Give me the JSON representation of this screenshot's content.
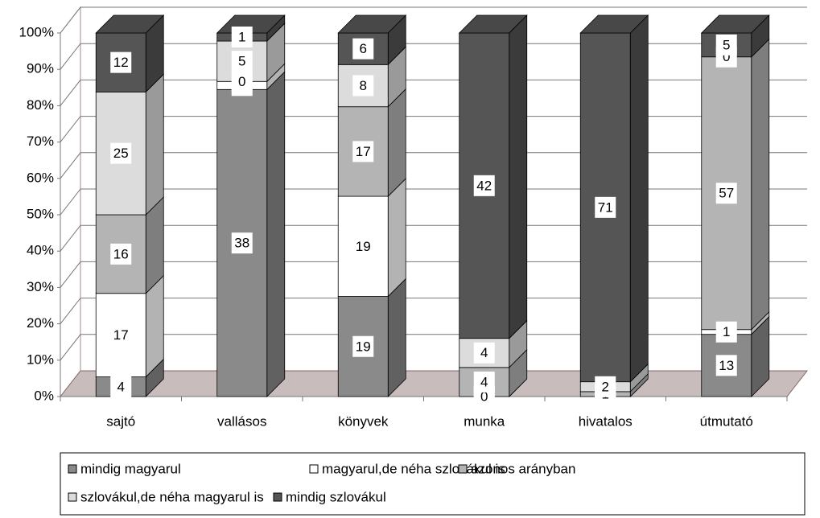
{
  "chart_data": {
    "type": "stacked-bar-3d",
    "stacking": "percent",
    "categories": [
      "sajtó",
      "vallásos",
      "könyvek",
      "munka",
      "hivatalos",
      "útmutató"
    ],
    "series": [
      {
        "name": "mindig magyarul",
        "color": "#8a8a8a",
        "values": [
          4,
          38,
          19,
          0,
          0,
          13
        ]
      },
      {
        "name": "magyarul,de néha szlovákul is",
        "color": "#ffffff",
        "values": [
          17,
          1,
          19,
          0,
          0,
          1
        ]
      },
      {
        "name": "azonos arányban",
        "color": "#b4b4b4",
        "values": [
          16,
          0,
          17,
          4,
          1,
          57
        ]
      },
      {
        "name": "szlovákul,de néha magyarul is",
        "color": "#dcdcdc",
        "values": [
          25,
          5,
          8,
          4,
          2,
          0
        ]
      },
      {
        "name": "mindig szlovákul",
        "color": "#555555",
        "values": [
          12,
          1,
          6,
          42,
          71,
          5
        ]
      }
    ],
    "ylim": [
      0,
      100
    ],
    "yticks": [
      {
        "value": 0,
        "label": "0%"
      },
      {
        "value": 10,
        "label": "10%"
      },
      {
        "value": 20,
        "label": "20%"
      },
      {
        "value": 30,
        "label": "30%"
      },
      {
        "value": 40,
        "label": "40%"
      },
      {
        "value": 50,
        "label": "50%"
      },
      {
        "value": 60,
        "label": "60%"
      },
      {
        "value": 70,
        "label": "70%"
      },
      {
        "value": 80,
        "label": "80%"
      },
      {
        "value": 90,
        "label": "90%"
      },
      {
        "value": 100,
        "label": "100%"
      }
    ],
    "grid": true,
    "legend": "bottom"
  }
}
